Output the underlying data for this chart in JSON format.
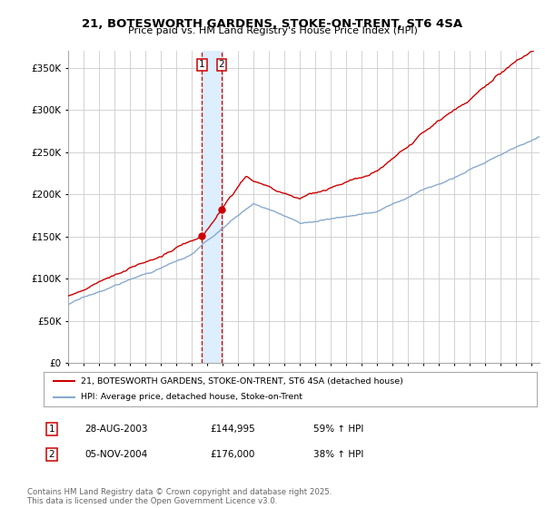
{
  "title": "21, BOTESWORTH GARDENS, STOKE-ON-TRENT, ST6 4SA",
  "subtitle": "Price paid vs. HM Land Registry's House Price Index (HPI)",
  "ylabel_ticks": [
    "£0",
    "£50K",
    "£100K",
    "£150K",
    "£200K",
    "£250K",
    "£300K",
    "£350K"
  ],
  "ytick_values": [
    0,
    50000,
    100000,
    150000,
    200000,
    250000,
    300000,
    350000
  ],
  "ylim": [
    0,
    370000
  ],
  "xlim_start": 1995.0,
  "xlim_end": 2025.5,
  "sale1_year": 2003.667,
  "sale2_year": 2004.917,
  "sale1_price": 144995,
  "sale2_price": 176000,
  "sale1_date": "28-AUG-2003",
  "sale1_hpi": "59% ↑ HPI",
  "sale2_date": "05-NOV-2004",
  "sale2_hpi": "38% ↑ HPI",
  "legend_line1": "21, BOTESWORTH GARDENS, STOKE-ON-TRENT, ST6 4SA (detached house)",
  "legend_line2": "HPI: Average price, detached house, Stoke-on-Trent",
  "footer": "Contains HM Land Registry data © Crown copyright and database right 2025.\nThis data is licensed under the Open Government Licence v3.0.",
  "line1_color": "#cc0000",
  "line2_color": "#88aacc",
  "vline_color": "#cc0000",
  "shade_color": "#ddeeff",
  "background_color": "#ffffff",
  "grid_color": "#cccccc"
}
